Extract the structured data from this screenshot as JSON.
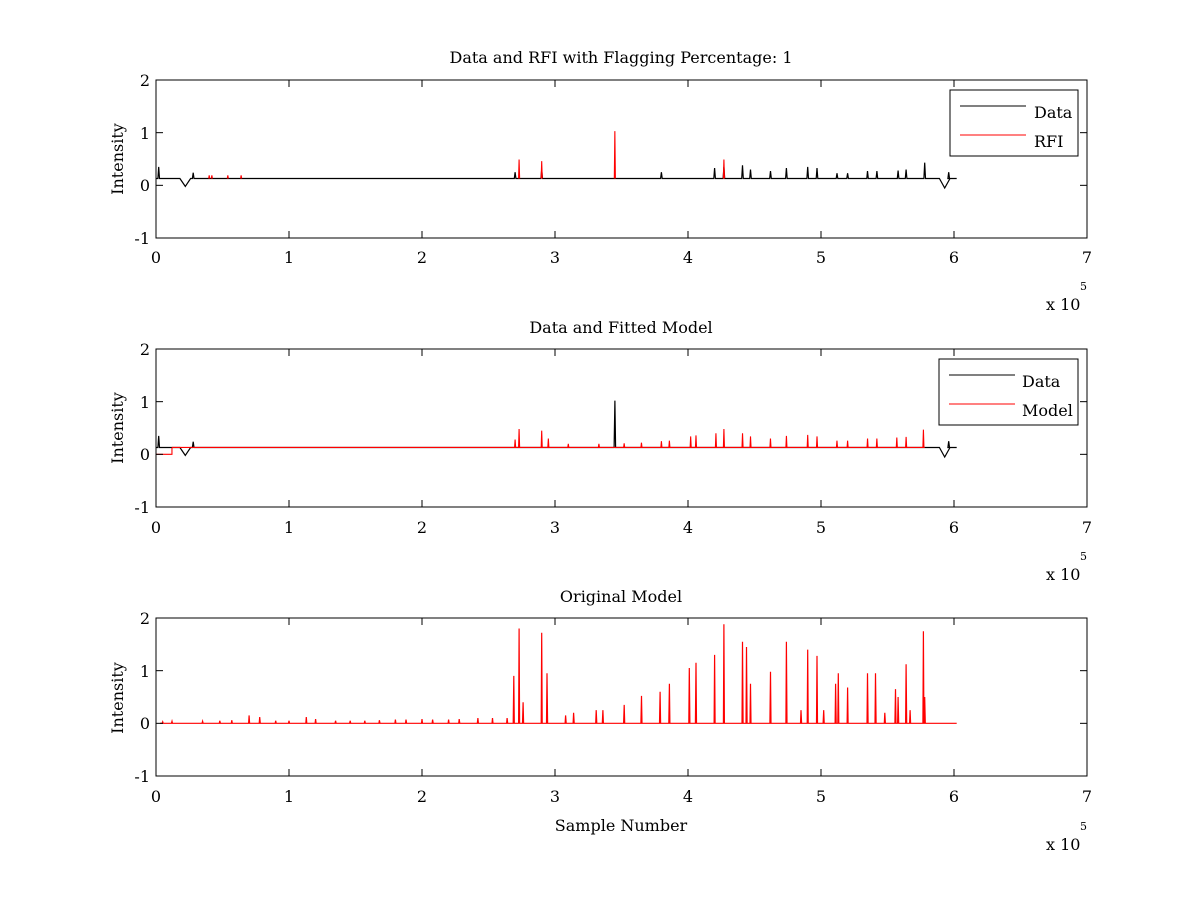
{
  "figure": {
    "background": "#ffffff"
  },
  "colors": {
    "data": "#000000",
    "rfi": "#ff0000",
    "model": "#ff0000",
    "axes": "#000000"
  },
  "chart_data": [
    {
      "type": "line",
      "title": "Data and RFI with Flagging Percentage: 1",
      "xlabel": "",
      "ylabel": "Intensity",
      "xlim": [
        0,
        7
      ],
      "ylim": [
        -1,
        2
      ],
      "x_multiplier_label": "x 10",
      "x_multiplier_exponent": "5",
      "xticks": [
        "0",
        "1",
        "2",
        "3",
        "4",
        "5",
        "6",
        "7"
      ],
      "yticks": [
        "-1",
        "0",
        "1",
        "2"
      ],
      "legend": {
        "placement": "top-right",
        "entries": [
          "Data",
          "RFI"
        ]
      },
      "baseline": 0.13,
      "x_range_data": [
        0,
        6.02
      ],
      "series": [
        {
          "name": "Data",
          "color": "#000000",
          "features": [
            {
              "x": 0.02,
              "y": 0.35
            },
            {
              "x": 0.22,
              "y": -0.02
            },
            {
              "x": 0.28,
              "y": 0.24
            },
            {
              "x": 2.7,
              "y": 0.25
            },
            {
              "x": 2.9,
              "y": 0.3
            },
            {
              "x": 3.8,
              "y": 0.25
            },
            {
              "x": 4.2,
              "y": 0.33
            },
            {
              "x": 4.27,
              "y": 0.35
            },
            {
              "x": 4.41,
              "y": 0.38
            },
            {
              "x": 4.47,
              "y": 0.3
            },
            {
              "x": 4.62,
              "y": 0.27
            },
            {
              "x": 4.74,
              "y": 0.33
            },
            {
              "x": 4.9,
              "y": 0.35
            },
            {
              "x": 4.97,
              "y": 0.33
            },
            {
              "x": 5.12,
              "y": 0.23
            },
            {
              "x": 5.2,
              "y": 0.23
            },
            {
              "x": 5.35,
              "y": 0.27
            },
            {
              "x": 5.42,
              "y": 0.27
            },
            {
              "x": 5.58,
              "y": 0.28
            },
            {
              "x": 5.64,
              "y": 0.3
            },
            {
              "x": 5.78,
              "y": 0.43
            },
            {
              "x": 5.93,
              "y": -0.05
            },
            {
              "x": 5.96,
              "y": 0.25
            }
          ]
        },
        {
          "name": "RFI",
          "color": "#ff0000",
          "features": [
            {
              "x": 0.4,
              "y": 0.19
            },
            {
              "x": 0.42,
              "y": 0.19
            },
            {
              "x": 0.54,
              "y": 0.19
            },
            {
              "x": 0.64,
              "y": 0.19
            },
            {
              "x": 2.73,
              "y": 0.49
            },
            {
              "x": 2.9,
              "y": 0.46
            },
            {
              "x": 3.45,
              "y": 1.03
            },
            {
              "x": 4.27,
              "y": 0.49
            }
          ]
        }
      ]
    },
    {
      "type": "line",
      "title": "Data and Fitted Model",
      "xlabel": "",
      "ylabel": "Intensity",
      "xlim": [
        0,
        7
      ],
      "ylim": [
        -1,
        2
      ],
      "x_multiplier_label": "x 10",
      "x_multiplier_exponent": "5",
      "xticks": [
        "0",
        "1",
        "2",
        "3",
        "4",
        "5",
        "6",
        "7"
      ],
      "yticks": [
        "-1",
        "0",
        "1",
        "2"
      ],
      "legend": {
        "placement": "top-right",
        "entries": [
          "Data",
          "Model"
        ]
      },
      "baseline": 0.13,
      "x_range_data": [
        0,
        6.02
      ],
      "series": [
        {
          "name": "Data",
          "color": "#000000",
          "features": [
            {
              "x": 0.02,
              "y": 0.35
            },
            {
              "x": 0.22,
              "y": -0.02
            },
            {
              "x": 0.28,
              "y": 0.24
            },
            {
              "x": 3.45,
              "y": 1.02
            },
            {
              "x": 5.93,
              "y": -0.05
            },
            {
              "x": 5.96,
              "y": 0.25
            }
          ]
        },
        {
          "name": "Model",
          "color": "#ff0000",
          "low_segment": {
            "x_start": 0.0,
            "x_end": 0.12,
            "y": 0.0
          },
          "features": [
            {
              "x": 2.7,
              "y": 0.28
            },
            {
              "x": 2.73,
              "y": 0.48
            },
            {
              "x": 2.9,
              "y": 0.45
            },
            {
              "x": 2.95,
              "y": 0.3
            },
            {
              "x": 3.1,
              "y": 0.2
            },
            {
              "x": 3.33,
              "y": 0.2
            },
            {
              "x": 3.52,
              "y": 0.21
            },
            {
              "x": 3.65,
              "y": 0.22
            },
            {
              "x": 3.8,
              "y": 0.25
            },
            {
              "x": 3.86,
              "y": 0.26
            },
            {
              "x": 4.02,
              "y": 0.34
            },
            {
              "x": 4.06,
              "y": 0.36
            },
            {
              "x": 4.21,
              "y": 0.4
            },
            {
              "x": 4.27,
              "y": 0.48
            },
            {
              "x": 4.41,
              "y": 0.4
            },
            {
              "x": 4.47,
              "y": 0.34
            },
            {
              "x": 4.62,
              "y": 0.3
            },
            {
              "x": 4.74,
              "y": 0.35
            },
            {
              "x": 4.9,
              "y": 0.37
            },
            {
              "x": 4.97,
              "y": 0.34
            },
            {
              "x": 5.12,
              "y": 0.26
            },
            {
              "x": 5.2,
              "y": 0.26
            },
            {
              "x": 5.35,
              "y": 0.3
            },
            {
              "x": 5.42,
              "y": 0.3
            },
            {
              "x": 5.57,
              "y": 0.32
            },
            {
              "x": 5.64,
              "y": 0.33
            },
            {
              "x": 5.77,
              "y": 0.47
            }
          ]
        }
      ]
    },
    {
      "type": "line",
      "title": "Original Model",
      "xlabel": "Sample Number",
      "ylabel": "Intensity",
      "xlim": [
        0,
        7
      ],
      "ylim": [
        -1,
        2
      ],
      "x_multiplier_label": "x 10",
      "x_multiplier_exponent": "5",
      "xticks": [
        "0",
        "1",
        "2",
        "3",
        "4",
        "5",
        "6",
        "7"
      ],
      "yticks": [
        "-1",
        "0",
        "1",
        "2"
      ],
      "baseline": 0.0,
      "x_range_data": [
        0.03,
        6.02
      ],
      "series": [
        {
          "color": "#ff0000",
          "features": [
            {
              "x": 0.05,
              "y": 0.03
            },
            {
              "x": 0.12,
              "y": 0.04
            },
            {
              "x": 0.35,
              "y": 0.04
            },
            {
              "x": 0.48,
              "y": 0.05
            },
            {
              "x": 0.57,
              "y": 0.06
            },
            {
              "x": 0.7,
              "y": 0.15
            },
            {
              "x": 0.78,
              "y": 0.12
            },
            {
              "x": 0.9,
              "y": 0.05
            },
            {
              "x": 1.0,
              "y": 0.05
            },
            {
              "x": 1.13,
              "y": 0.12
            },
            {
              "x": 1.2,
              "y": 0.08
            },
            {
              "x": 1.35,
              "y": 0.05
            },
            {
              "x": 1.46,
              "y": 0.05
            },
            {
              "x": 1.57,
              "y": 0.05
            },
            {
              "x": 1.68,
              "y": 0.06
            },
            {
              "x": 1.8,
              "y": 0.07
            },
            {
              "x": 1.88,
              "y": 0.07
            },
            {
              "x": 2.0,
              "y": 0.08
            },
            {
              "x": 2.08,
              "y": 0.07
            },
            {
              "x": 2.2,
              "y": 0.07
            },
            {
              "x": 2.28,
              "y": 0.08
            },
            {
              "x": 2.42,
              "y": 0.1
            },
            {
              "x": 2.53,
              "y": 0.1
            },
            {
              "x": 2.64,
              "y": 0.1
            },
            {
              "x": 2.69,
              "y": 0.9
            },
            {
              "x": 2.73,
              "y": 1.8
            },
            {
              "x": 2.76,
              "y": 0.4
            },
            {
              "x": 2.9,
              "y": 1.72
            },
            {
              "x": 2.94,
              "y": 0.95
            },
            {
              "x": 3.08,
              "y": 0.15
            },
            {
              "x": 3.14,
              "y": 0.2
            },
            {
              "x": 3.31,
              "y": 0.25
            },
            {
              "x": 3.36,
              "y": 0.25
            },
            {
              "x": 3.52,
              "y": 0.35
            },
            {
              "x": 3.65,
              "y": 0.52
            },
            {
              "x": 3.79,
              "y": 0.6
            },
            {
              "x": 3.86,
              "y": 0.75
            },
            {
              "x": 4.01,
              "y": 1.05
            },
            {
              "x": 4.06,
              "y": 1.15
            },
            {
              "x": 4.2,
              "y": 1.3
            },
            {
              "x": 4.27,
              "y": 1.88
            },
            {
              "x": 4.41,
              "y": 1.55
            },
            {
              "x": 4.44,
              "y": 1.45
            },
            {
              "x": 4.47,
              "y": 0.75
            },
            {
              "x": 4.62,
              "y": 0.98
            },
            {
              "x": 4.74,
              "y": 1.55
            },
            {
              "x": 4.85,
              "y": 0.25
            },
            {
              "x": 4.9,
              "y": 1.4
            },
            {
              "x": 4.97,
              "y": 1.28
            },
            {
              "x": 5.02,
              "y": 0.25
            },
            {
              "x": 5.11,
              "y": 0.75
            },
            {
              "x": 5.13,
              "y": 0.95
            },
            {
              "x": 5.2,
              "y": 0.68
            },
            {
              "x": 5.35,
              "y": 0.95
            },
            {
              "x": 5.41,
              "y": 0.95
            },
            {
              "x": 5.48,
              "y": 0.2
            },
            {
              "x": 5.56,
              "y": 0.65
            },
            {
              "x": 5.58,
              "y": 0.5
            },
            {
              "x": 5.64,
              "y": 1.12
            },
            {
              "x": 5.67,
              "y": 0.25
            },
            {
              "x": 5.77,
              "y": 1.75
            },
            {
              "x": 5.78,
              "y": 0.5
            }
          ]
        }
      ]
    }
  ]
}
